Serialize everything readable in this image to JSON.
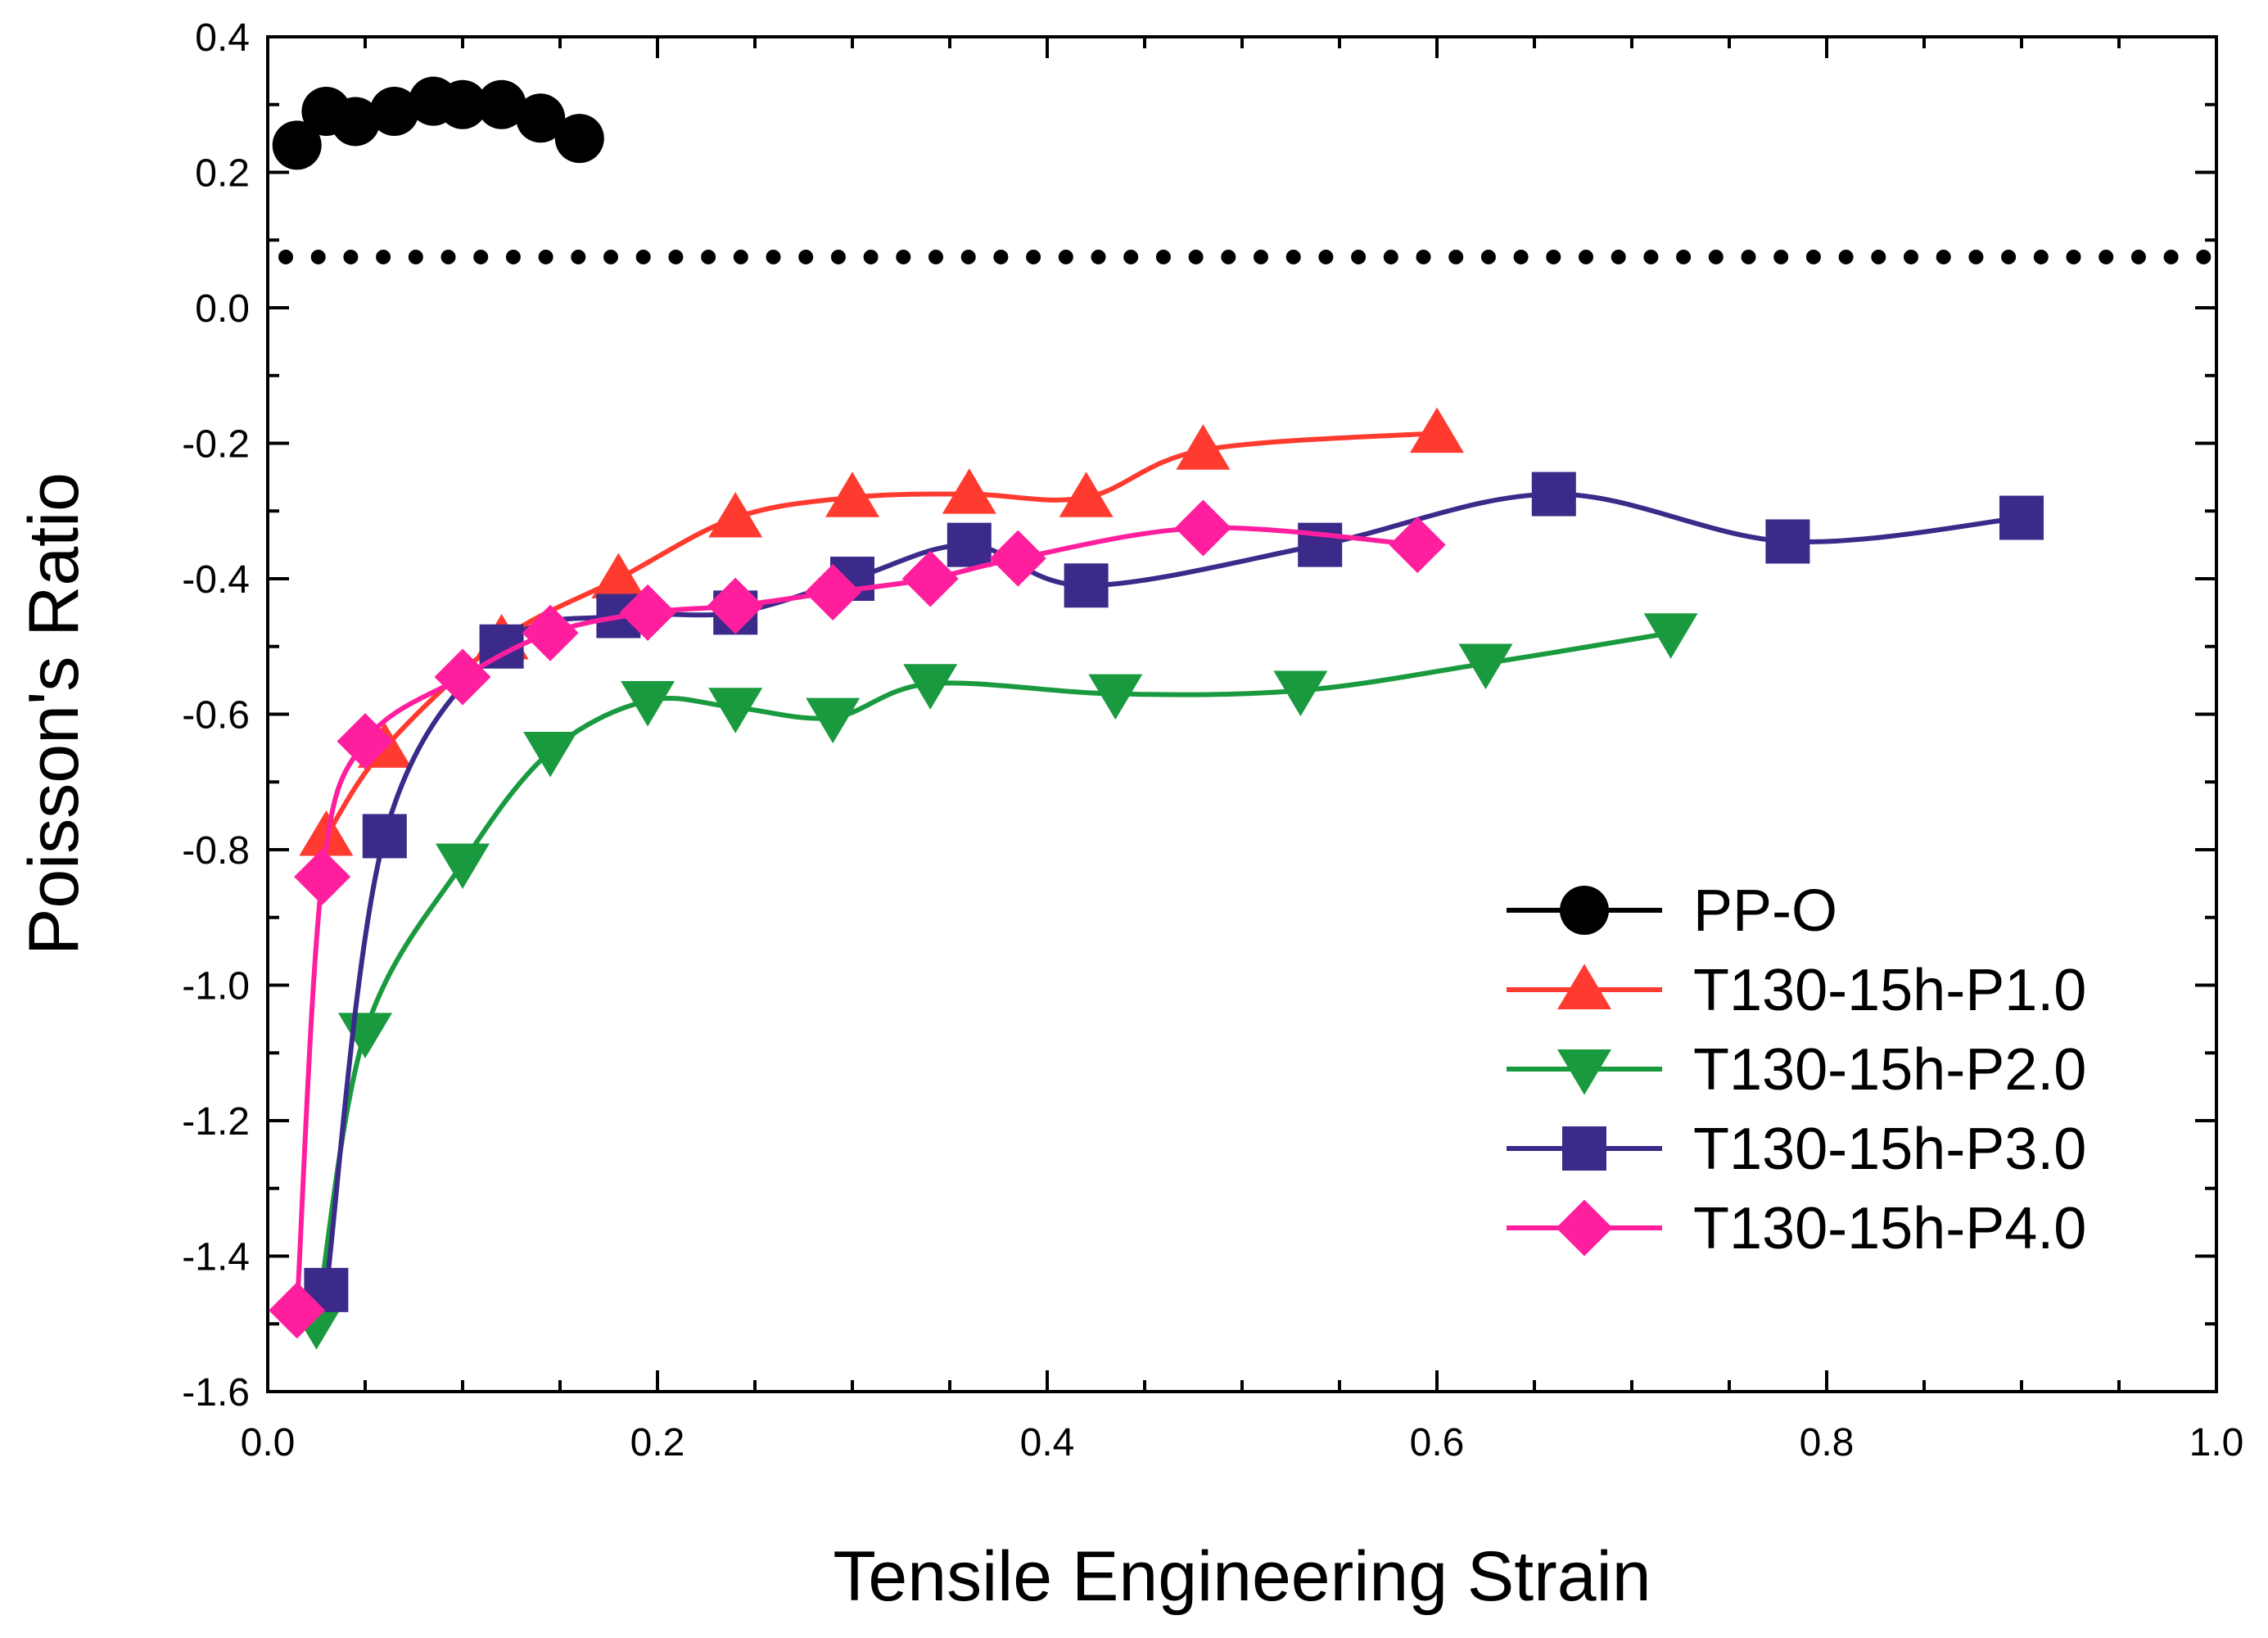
{
  "chart_data": {
    "type": "line",
    "xlabel": "Tensile Engineering Strain",
    "ylabel": "Poisson's Ratio",
    "xlim": [
      0.0,
      1.0
    ],
    "ylim": [
      -1.6,
      0.4
    ],
    "x_ticks": [
      "0.0",
      "0.2",
      "0.4",
      "0.6",
      "0.8",
      "1.0"
    ],
    "y_ticks": [
      "0.4",
      "0.2",
      "0.0",
      "-0.2",
      "-0.4",
      "-0.6",
      "-0.8",
      "-1.0",
      "-1.2",
      "-1.4",
      "-1.6"
    ],
    "reference_line": {
      "y": 0.075,
      "style": "dotted"
    },
    "legend_position": "lower-right",
    "series": [
      {
        "name": "PP-O",
        "color": "#000000",
        "marker": "circle",
        "points": [
          [
            0.015,
            0.24
          ],
          [
            0.03,
            0.29
          ],
          [
            0.045,
            0.275
          ],
          [
            0.065,
            0.29
          ],
          [
            0.085,
            0.305
          ],
          [
            0.1,
            0.3
          ],
          [
            0.12,
            0.3
          ],
          [
            0.14,
            0.28
          ],
          [
            0.16,
            0.25
          ]
        ]
      },
      {
        "name": "T130-15h-P1.0",
        "color": "#ff3b30",
        "marker": "triangle-up",
        "points": [
          [
            0.03,
            -0.78
          ],
          [
            0.06,
            -0.65
          ],
          [
            0.12,
            -0.49
          ],
          [
            0.18,
            -0.4
          ],
          [
            0.24,
            -0.31
          ],
          [
            0.3,
            -0.28
          ],
          [
            0.36,
            -0.275
          ],
          [
            0.42,
            -0.28
          ],
          [
            0.48,
            -0.21
          ],
          [
            0.6,
            -0.185
          ]
        ]
      },
      {
        "name": "T130-15h-P2.0",
        "color": "#1a9a3f",
        "marker": "triangle-down",
        "points": [
          [
            0.025,
            -1.5
          ],
          [
            0.05,
            -1.07
          ],
          [
            0.1,
            -0.82
          ],
          [
            0.145,
            -0.655
          ],
          [
            0.195,
            -0.58
          ],
          [
            0.24,
            -0.59
          ],
          [
            0.29,
            -0.605
          ],
          [
            0.34,
            -0.555
          ],
          [
            0.435,
            -0.57
          ],
          [
            0.53,
            -0.565
          ],
          [
            0.625,
            -0.525
          ],
          [
            0.72,
            -0.48
          ]
        ]
      },
      {
        "name": "T130-15h-P3.0",
        "color": "#3b2a8a",
        "marker": "square",
        "points": [
          [
            0.03,
            -1.45
          ],
          [
            0.06,
            -0.78
          ],
          [
            0.12,
            -0.5
          ],
          [
            0.18,
            -0.455
          ],
          [
            0.24,
            -0.45
          ],
          [
            0.3,
            -0.4
          ],
          [
            0.36,
            -0.35
          ],
          [
            0.42,
            -0.41
          ],
          [
            0.54,
            -0.35
          ],
          [
            0.66,
            -0.275
          ],
          [
            0.78,
            -0.345
          ],
          [
            0.9,
            -0.31
          ]
        ]
      },
      {
        "name": "T130-15h-P4.0",
        "color": "#ff1f9e",
        "marker": "diamond",
        "points": [
          [
            0.015,
            -1.48
          ],
          [
            0.028,
            -0.84
          ],
          [
            0.05,
            -0.64
          ],
          [
            0.1,
            -0.545
          ],
          [
            0.145,
            -0.48
          ],
          [
            0.195,
            -0.45
          ],
          [
            0.24,
            -0.44
          ],
          [
            0.29,
            -0.42
          ],
          [
            0.34,
            -0.4
          ],
          [
            0.385,
            -0.37
          ],
          [
            0.48,
            -0.325
          ],
          [
            0.59,
            -0.35
          ]
        ]
      }
    ]
  }
}
